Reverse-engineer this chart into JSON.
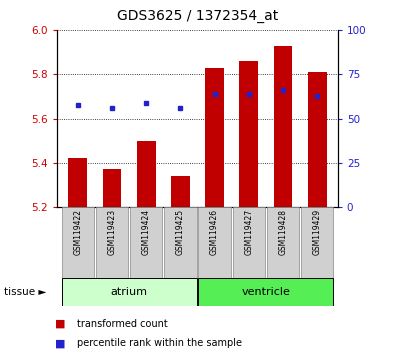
{
  "title": "GDS3625 / 1372354_at",
  "samples": [
    "GSM119422",
    "GSM119423",
    "GSM119424",
    "GSM119425",
    "GSM119426",
    "GSM119427",
    "GSM119428",
    "GSM119429"
  ],
  "transformed_count": [
    5.42,
    5.37,
    5.5,
    5.34,
    5.83,
    5.86,
    5.93,
    5.81
  ],
  "percentile_rank": [
    5.66,
    5.65,
    5.67,
    5.65,
    5.71,
    5.71,
    5.73,
    5.7
  ],
  "bar_bottom": 5.2,
  "ylim_left": [
    5.2,
    6.0
  ],
  "ylim_right": [
    0,
    100
  ],
  "yticks_left": [
    5.2,
    5.4,
    5.6,
    5.8,
    6.0
  ],
  "yticks_right": [
    0,
    25,
    50,
    75,
    100
  ],
  "bar_color": "#c00000",
  "dot_color": "#2222cc",
  "tissue_groups": [
    {
      "label": "atrium",
      "start": 0,
      "end": 3,
      "color": "#ccffcc"
    },
    {
      "label": "ventricle",
      "start": 4,
      "end": 7,
      "color": "#55ee55"
    }
  ],
  "bar_width": 0.55,
  "left_tick_color": "#cc0000",
  "right_tick_color": "#2222cc",
  "bg_color": "#ffffff",
  "sample_box_color": "#d0d0d0",
  "legend_bar_label": "transformed count",
  "legend_dot_label": "percentile rank within the sample"
}
